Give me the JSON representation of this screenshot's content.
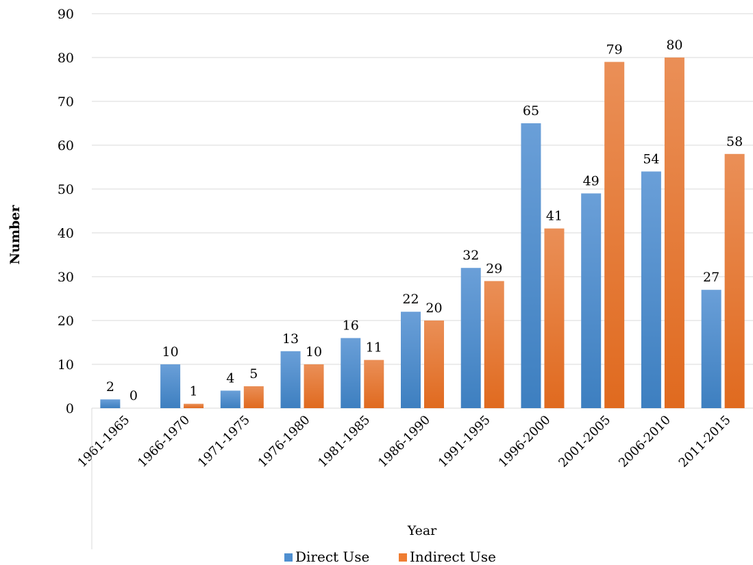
{
  "chart_data": {
    "type": "bar",
    "title": "",
    "xlabel": "Year",
    "ylabel": "Number",
    "ylim": [
      0,
      90
    ],
    "yticks": [
      0,
      10,
      20,
      30,
      40,
      50,
      60,
      70,
      80,
      90
    ],
    "grid": true,
    "legend": "bottom",
    "categories": [
      "1961-1965",
      "1966-1970",
      "1971-1975",
      "1976-1980",
      "1981-1985",
      "1986-1990",
      "1991-1995",
      "1996-2000",
      "2001-2005",
      "2006-2010",
      "2011-2015"
    ],
    "series": [
      {
        "name": "Direct Use",
        "color": "#4f8fd0",
        "values": [
          2,
          10,
          4,
          13,
          16,
          22,
          32,
          65,
          49,
          54,
          27
        ]
      },
      {
        "name": "Indirect Use",
        "color": "#ef7d32",
        "values": [
          0,
          1,
          5,
          10,
          11,
          20,
          29,
          41,
          79,
          80,
          58
        ]
      }
    ]
  }
}
